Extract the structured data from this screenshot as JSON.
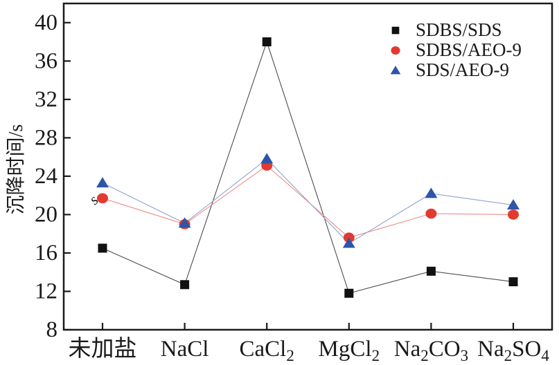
{
  "chart_data": {
    "type": "line",
    "title": "",
    "xlabel": "",
    "ylabel": "沉降时间/s",
    "categories": [
      "未加盐",
      "NaCl",
      "CaCl2",
      "MgCl2",
      "Na2CO3",
      "Na2SO4"
    ],
    "subscript_rule": "digits-in-category-labels-are-subscripts",
    "y_ticks": [
      8,
      12,
      16,
      20,
      24,
      28,
      32,
      36,
      40
    ],
    "ylim": [
      8,
      42
    ],
    "grid": false,
    "legend_position": "top-right-inside",
    "series": [
      {
        "name": "SDBS/SDS",
        "marker": "square",
        "color": "#111111",
        "line_color": "#4d4d4d",
        "values": [
          16.5,
          12.7,
          38.0,
          11.8,
          14.1,
          13.0
        ]
      },
      {
        "name": "SDBS/AEO-9",
        "marker": "circle",
        "color": "#e23a31",
        "line_color": "#ee8c85",
        "values": [
          21.7,
          19.0,
          25.1,
          17.6,
          20.1,
          20.0
        ]
      },
      {
        "name": "SDS/AEO-9",
        "marker": "triangle",
        "color": "#2e55a6",
        "line_color": "#8ba3d0",
        "values": [
          23.3,
          19.1,
          25.8,
          17.0,
          22.2,
          21.0
        ]
      }
    ],
    "stray_glyph": "s",
    "axis_color": "#1a1a1a"
  }
}
